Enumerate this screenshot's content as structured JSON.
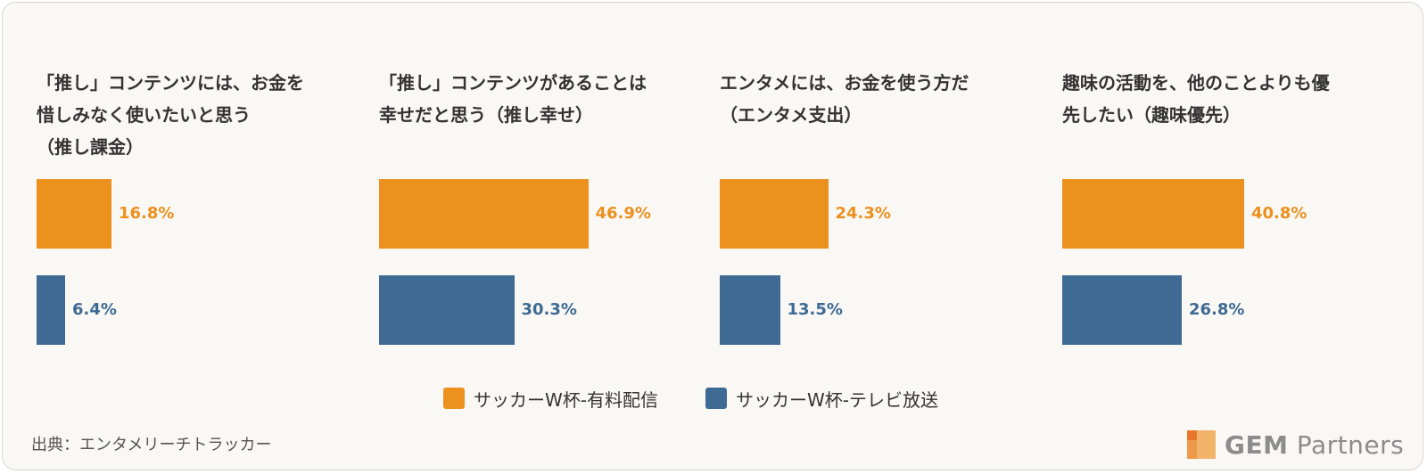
{
  "chart_data": {
    "type": "bar",
    "orientation": "horizontal",
    "panels": [
      {
        "title": "「推し」コンテンツには、お金を\n惜しみなく使いたいと思う\n（推し課金）",
        "values": [
          16.8,
          6.4
        ],
        "labels": [
          "16.8%",
          "6.4%"
        ]
      },
      {
        "title": "「推し」コンテンツがあることは\n幸せだと思う（推し幸せ）",
        "values": [
          46.9,
          30.3
        ],
        "labels": [
          "46.9%",
          "30.3%"
        ]
      },
      {
        "title": "エンタメには、お金を使う方だ\n（エンタメ支出）",
        "values": [
          24.3,
          13.5
        ],
        "labels": [
          "24.3%",
          "13.5%"
        ]
      },
      {
        "title": "趣味の活動を、他のことよりも優\n先したい（趣味優先）",
        "values": [
          40.8,
          26.8
        ],
        "labels": [
          "40.8%",
          "26.8%"
        ]
      }
    ],
    "series": [
      {
        "name": "サッカーW杯-有料配信",
        "color": "#ec901e"
      },
      {
        "name": "サッカーW杯-テレビ放送",
        "color": "#3e6a94"
      }
    ],
    "unit": "%",
    "legend": "bottom-center",
    "grid": false
  },
  "footer": {
    "source": "出典：エンタメリーチトラッカー",
    "logo_bold": "GEM",
    "logo_rest": " Partners"
  }
}
